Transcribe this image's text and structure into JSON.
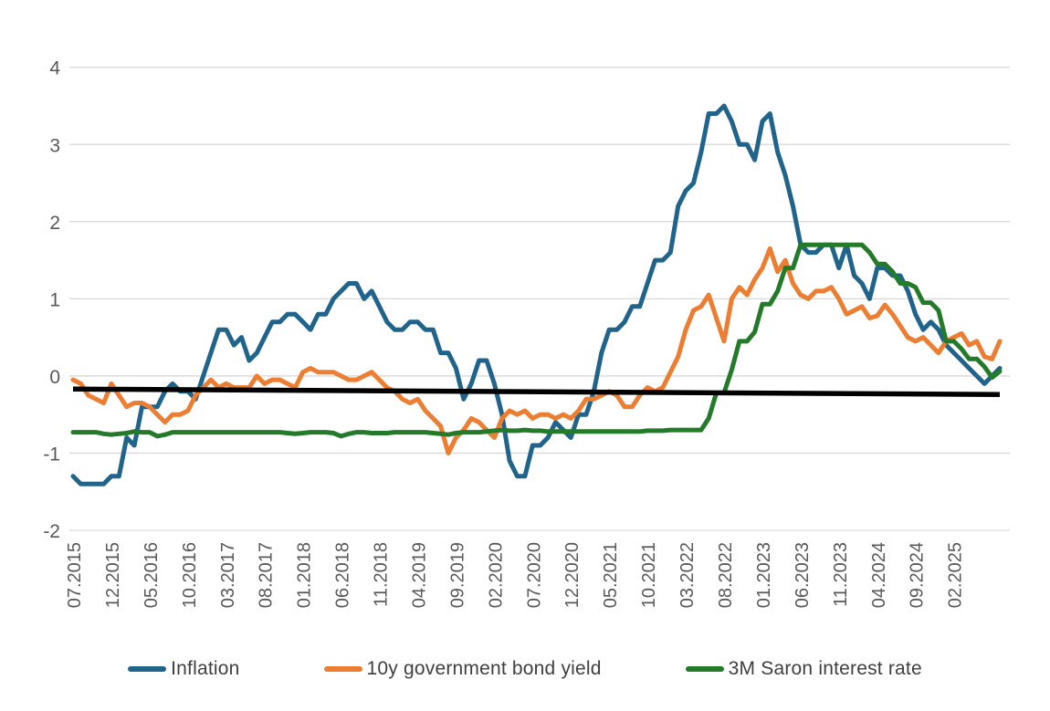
{
  "chart_data": {
    "type": "line",
    "title": "",
    "x_tick_labels": [
      "07.2015",
      "12.2015",
      "05.2016",
      "10.2016",
      "03.2017",
      "08.2017",
      "01.2018",
      "06.2018",
      "11.2018",
      "04.2019",
      "09.2019",
      "02.2020",
      "07.2020",
      "12.2020",
      "05.2021",
      "10.2021",
      "03.2022",
      "08.2022",
      "01.2023",
      "06.2023",
      "11.2023",
      "04.2024",
      "09.2024",
      "02.2025"
    ],
    "points_per_tick": 5,
    "n_points": 122,
    "y_ticks": [
      4,
      3,
      2,
      1,
      0,
      -1,
      -2
    ],
    "ylim": [
      -2,
      4.34
    ],
    "grid": true,
    "gridline_color": "#d9d9d9",
    "axis_label_color": "#595959",
    "legend_position": "bottom",
    "series": [
      {
        "name": "Inflation",
        "color": "#20648B",
        "values": [
          -1.3,
          -1.4,
          -1.4,
          -1.4,
          -1.4,
          -1.3,
          -1.3,
          -0.8,
          -0.9,
          -0.4,
          -0.4,
          -0.4,
          -0.2,
          -0.1,
          -0.2,
          -0.2,
          -0.3,
          0,
          0.3,
          0.6,
          0.6,
          0.4,
          0.5,
          0.2,
          0.3,
          0.5,
          0.7,
          0.7,
          0.8,
          0.8,
          0.7,
          0.6,
          0.8,
          0.8,
          1,
          1.1,
          1.2,
          1.2,
          1,
          1.1,
          0.9,
          0.7,
          0.6,
          0.6,
          0.7,
          0.7,
          0.6,
          0.6,
          0.3,
          0.3,
          0.1,
          -0.3,
          -0.1,
          0.2,
          0.2,
          -0.1,
          -0.5,
          -1.1,
          -1.3,
          -1.3,
          -0.9,
          -0.9,
          -0.8,
          -0.6,
          -0.7,
          -0.8,
          -0.5,
          -0.5,
          -0.2,
          0.3,
          0.6,
          0.6,
          0.7,
          0.9,
          0.9,
          1.2,
          1.5,
          1.5,
          1.6,
          2.2,
          2.4,
          2.5,
          2.9,
          3.4,
          3.4,
          3.5,
          3.3,
          3,
          3,
          2.8,
          3.3,
          3.4,
          2.9,
          2.6,
          2.2,
          1.7,
          1.6,
          1.6,
          1.7,
          1.7,
          1.4,
          1.7,
          1.3,
          1.2,
          1,
          1.4,
          1.4,
          1.3,
          1.3,
          1.1,
          0.8,
          0.6,
          0.7,
          0.6,
          0.4,
          0.3,
          0.2,
          0.1,
          0,
          -0.1,
          0,
          0.1
        ]
      },
      {
        "name": "10y government bond yield",
        "color": "#ED7D31",
        "values": [
          -0.05,
          -0.1,
          -0.25,
          -0.3,
          -0.35,
          -0.1,
          -0.25,
          -0.4,
          -0.35,
          -0.35,
          -0.4,
          -0.5,
          -0.6,
          -0.5,
          -0.5,
          -0.45,
          -0.25,
          -0.15,
          -0.05,
          -0.15,
          -0.1,
          -0.15,
          -0.15,
          -0.15,
          0,
          -0.1,
          -0.05,
          -0.05,
          -0.1,
          -0.15,
          0.05,
          0.1,
          0.05,
          0.05,
          0.05,
          0,
          -0.05,
          -0.05,
          0,
          0.05,
          -0.05,
          -0.15,
          -0.2,
          -0.3,
          -0.35,
          -0.3,
          -0.45,
          -0.55,
          -0.65,
          -1,
          -0.8,
          -0.7,
          -0.55,
          -0.6,
          -0.7,
          -0.8,
          -0.55,
          -0.45,
          -0.5,
          -0.45,
          -0.55,
          -0.5,
          -0.5,
          -0.55,
          -0.5,
          -0.55,
          -0.45,
          -0.3,
          -0.3,
          -0.25,
          -0.2,
          -0.25,
          -0.4,
          -0.4,
          -0.25,
          -0.15,
          -0.2,
          -0.15,
          0.05,
          0.25,
          0.6,
          0.85,
          0.9,
          1.05,
          0.75,
          0.45,
          1,
          1.15,
          1.05,
          1.25,
          1.4,
          1.65,
          1.35,
          1.5,
          1.2,
          1.05,
          1,
          1.1,
          1.1,
          1.15,
          1,
          0.8,
          0.85,
          0.9,
          0.75,
          0.78,
          0.92,
          0.8,
          0.65,
          0.5,
          0.45,
          0.5,
          0.4,
          0.3,
          0.45,
          0.5,
          0.55,
          0.4,
          0.45,
          0.25,
          0.22,
          0.45
        ]
      },
      {
        "name": "3M Saron interest rate",
        "color": "#237B29",
        "values": [
          -0.73,
          -0.73,
          -0.73,
          -0.73,
          -0.75,
          -0.76,
          -0.75,
          -0.74,
          -0.72,
          -0.73,
          -0.73,
          -0.78,
          -0.76,
          -0.73,
          -0.73,
          -0.73,
          -0.73,
          -0.73,
          -0.73,
          -0.73,
          -0.73,
          -0.73,
          -0.73,
          -0.73,
          -0.73,
          -0.73,
          -0.73,
          -0.73,
          -0.74,
          -0.75,
          -0.74,
          -0.73,
          -0.73,
          -0.73,
          -0.74,
          -0.78,
          -0.75,
          -0.73,
          -0.73,
          -0.74,
          -0.74,
          -0.74,
          -0.73,
          -0.73,
          -0.73,
          -0.73,
          -0.73,
          -0.74,
          -0.75,
          -0.76,
          -0.74,
          -0.73,
          -0.73,
          -0.73,
          -0.72,
          -0.71,
          -0.7,
          -0.71,
          -0.71,
          -0.7,
          -0.71,
          -0.71,
          -0.72,
          -0.72,
          -0.72,
          -0.72,
          -0.72,
          -0.72,
          -0.72,
          -0.72,
          -0.72,
          -0.72,
          -0.72,
          -0.72,
          -0.72,
          -0.71,
          -0.71,
          -0.71,
          -0.7,
          -0.7,
          -0.7,
          -0.7,
          -0.7,
          -0.55,
          -0.22,
          -0.22,
          0.08,
          0.45,
          0.45,
          0.57,
          0.93,
          0.93,
          1.1,
          1.4,
          1.4,
          1.7,
          1.7,
          1.7,
          1.7,
          1.7,
          1.7,
          1.7,
          1.7,
          1.7,
          1.6,
          1.45,
          1.45,
          1.35,
          1.2,
          1.2,
          1.15,
          0.95,
          0.95,
          0.85,
          0.45,
          0.45,
          0.35,
          0.22,
          0.22,
          0.12,
          -0.02,
          0.06
        ]
      }
    ],
    "reference_line": {
      "name": "unlabeled black reference line",
      "color": "#000000",
      "start_value": -0.17,
      "end_value": -0.24
    }
  }
}
